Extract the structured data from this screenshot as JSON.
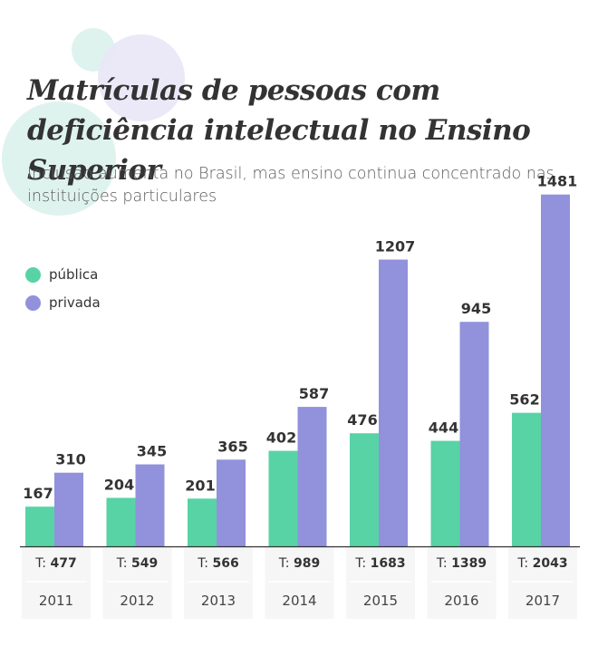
{
  "title": "Matrículas de pessoas com deficiência intelectual no Ensino Superior",
  "subtitle": "Inclusão aumenta no Brasil, mas ensino continua concentrado nas instituições particulares",
  "colors": {
    "publica": "#58d3a6",
    "privada": "#9191dc",
    "blob_green": "#dff3ee",
    "blob_purple": "#e9e7f7",
    "totals_bg": "#f6f6f6"
  },
  "legend": [
    {
      "label": "pública",
      "color": "#58d3a6"
    },
    {
      "label": "privada",
      "color": "#9191dc"
    }
  ],
  "total_prefix": "T:",
  "chart_data": {
    "type": "bar",
    "categories": [
      "2011",
      "2012",
      "2013",
      "2014",
      "2015",
      "2016",
      "2017"
    ],
    "series": [
      {
        "name": "pública",
        "values": [
          167,
          204,
          201,
          402,
          476,
          444,
          562
        ]
      },
      {
        "name": "privada",
        "values": [
          310,
          345,
          365,
          587,
          1207,
          945,
          1481
        ]
      }
    ],
    "totals": [
      477,
      549,
      566,
      989,
      1683,
      1389,
      2043
    ],
    "title": "Matrículas de pessoas com deficiência intelectual no Ensino Superior",
    "subtitle": "Inclusão aumenta no Brasil, mas ensino continua concentrado nas instituições particulares",
    "xlabel": "",
    "ylabel": "",
    "ylim": [
      0,
      1500
    ],
    "grid": false,
    "legend_position": "left"
  }
}
